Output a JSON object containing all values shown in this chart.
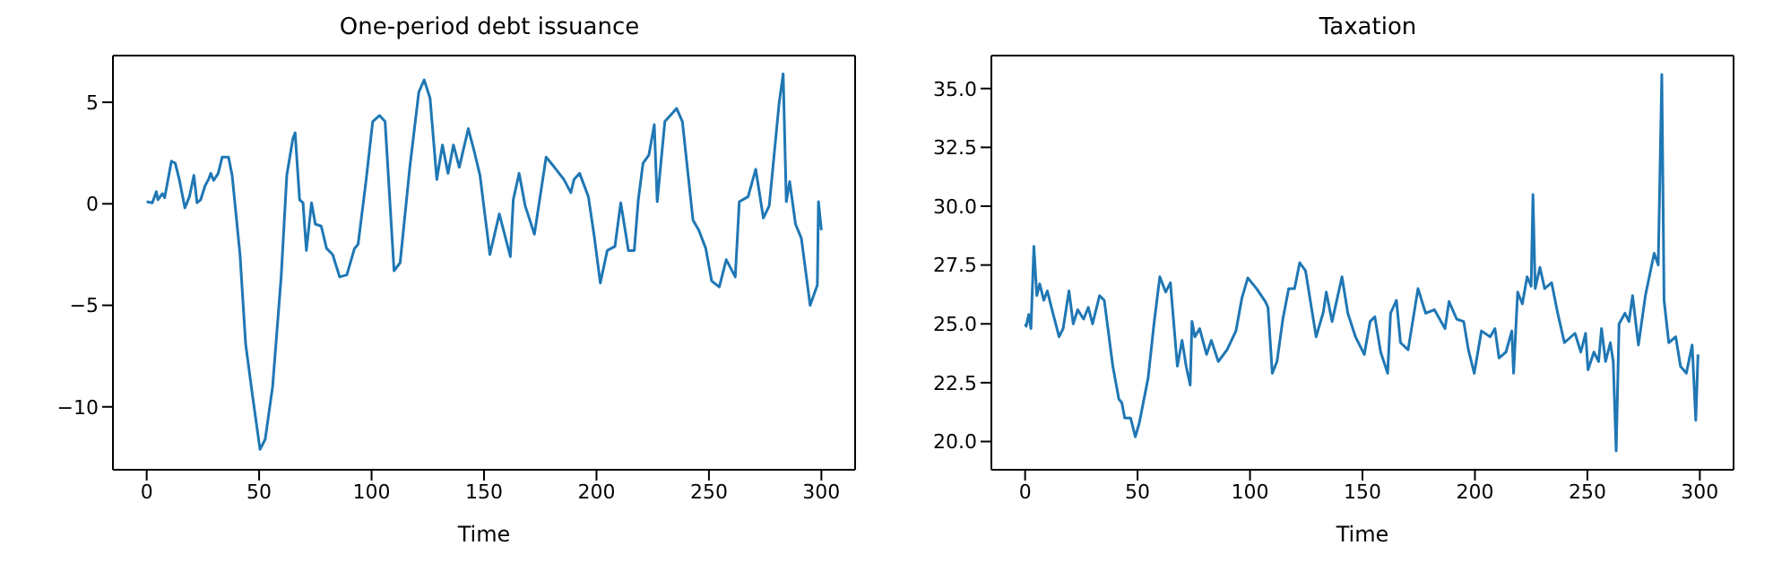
{
  "chart_data": [
    {
      "type": "line",
      "title": "One-period debt issuance",
      "xlabel": "Time",
      "xlim": [
        -15,
        315
      ],
      "xticks": [
        0,
        50,
        100,
        150,
        200,
        250,
        300
      ],
      "ylim": [
        -13.1,
        7.3
      ],
      "yticks": [
        {
          "value": -10,
          "label": "−10"
        },
        {
          "value": -5,
          "label": "−5"
        },
        0,
        5
      ],
      "grid": false,
      "legend": false,
      "series": [
        {
          "color": "#1f77b4",
          "x": [
            0,
            2.5,
            4.3,
            5,
            7,
            8,
            11,
            12.7,
            14.5,
            17,
            19,
            21,
            22.4,
            24,
            26,
            27.5,
            28.5,
            29.8,
            31.8,
            33.6,
            36.4,
            38,
            41.5,
            44,
            47,
            50.4,
            52.7,
            56,
            59.8,
            62.3,
            65,
            66,
            68,
            69.5,
            71,
            73.3,
            75,
            77.6,
            80,
            82.7,
            85.8,
            89,
            92.4,
            94,
            97.5,
            100.5,
            103.5,
            106,
            110,
            112.7,
            117,
            121,
            123.4,
            126,
            129,
            131.5,
            134,
            136.4,
            139,
            143,
            145.6,
            148.2,
            152.6,
            156.8,
            161.7,
            163,
            165.6,
            168.3,
            172.4,
            177.6,
            181.3,
            185.5,
            188.6,
            190,
            192.5,
            196.4,
            199,
            201.7,
            204.8,
            208.2,
            210.8,
            214.2,
            216.8,
            218.6,
            220.7,
            223.3,
            225.7,
            227,
            230.4,
            232.4,
            235.6,
            238.2,
            242.9,
            245.5,
            248.6,
            251.2,
            254.6,
            257.7,
            261.7,
            263.5,
            267.4,
            270.8,
            274.2,
            276.8,
            281.2,
            283,
            284.4,
            285.9,
            288.5,
            291.1,
            295,
            298.2,
            298.7,
            300
          ],
          "values": [
            0.1,
            0.05,
            0.6,
            0.2,
            0.5,
            0.3,
            2.1,
            2.0,
            1.2,
            -0.2,
            0.35,
            1.4,
            0.05,
            0.2,
            0.9,
            1.2,
            1.5,
            1.15,
            1.5,
            2.3,
            2.3,
            1.4,
            -2.5,
            -6.9,
            -9.4,
            -12.1,
            -11.6,
            -9.0,
            -3.6,
            1.4,
            3.2,
            3.5,
            0.2,
            0.05,
            -2.3,
            0.05,
            -1.0,
            -1.1,
            -2.2,
            -2.5,
            -3.6,
            -3.5,
            -2.2,
            -2.0,
            1.1,
            4.05,
            4.35,
            4.05,
            -3.3,
            -2.9,
            1.8,
            5.5,
            6.1,
            5.2,
            1.2,
            2.9,
            1.5,
            2.9,
            1.8,
            3.7,
            2.6,
            1.4,
            -2.5,
            -0.5,
            -2.6,
            0.2,
            1.5,
            -0.1,
            -1.5,
            2.3,
            1.8,
            1.2,
            0.55,
            1.2,
            1.5,
            0.35,
            -1.6,
            -3.9,
            -2.3,
            -2.1,
            0.05,
            -2.3,
            -2.3,
            0.2,
            2.0,
            2.4,
            3.9,
            0.1,
            4.05,
            4.3,
            4.7,
            4.05,
            -0.8,
            -1.3,
            -2.2,
            -3.8,
            -4.1,
            -2.75,
            -3.6,
            0.1,
            0.35,
            1.7,
            -0.7,
            -0.1,
            4.95,
            6.4,
            0.1,
            1.1,
            -1.0,
            -1.7,
            -5.0,
            -4.0,
            0.1,
            -1.3
          ]
        }
      ]
    },
    {
      "type": "line",
      "title": "Taxation",
      "xlabel": "Time",
      "xlim": [
        -15,
        315
      ],
      "xticks": [
        0,
        50,
        100,
        150,
        200,
        250,
        300
      ],
      "ylim": [
        18.8,
        36.4
      ],
      "yticks": [
        {
          "value": 20,
          "label": "20.0"
        },
        {
          "value": 22.5,
          "label": "22.5"
        },
        {
          "value": 25,
          "label": "25.0"
        },
        {
          "value": 27.5,
          "label": "27.5"
        },
        {
          "value": 30,
          "label": "30.0"
        },
        {
          "value": 32.5,
          "label": "32.5"
        },
        {
          "value": 35,
          "label": "35.0"
        }
      ],
      "grid": false,
      "legend": false,
      "series": [
        {
          "color": "#1f77b4",
          "x": [
            0,
            0.5,
            1.6,
            2.6,
            3.9,
            5.2,
            6.5,
            8.3,
            9.9,
            11.7,
            15.1,
            16.9,
            19.5,
            21.4,
            23.4,
            26,
            28.1,
            30,
            31.8,
            33.1,
            35.2,
            39,
            41.7,
            43,
            44.3,
            46.9,
            49,
            50.8,
            54.7,
            57.3,
            59.9,
            62.5,
            64.6,
            67.7,
            69.8,
            71.6,
            73.4,
            74.2,
            75.5,
            77.6,
            80.7,
            82.8,
            85.9,
            89.8,
            93.75,
            96.4,
            99,
            102.9,
            106.8,
            108,
            109.9,
            112,
            114.6,
            117.2,
            119.8,
            122.1,
            124.7,
            127.3,
            129.4,
            132.6,
            133.9,
            136.5,
            140.9,
            143.5,
            146.9,
            150.8,
            153.4,
            155.5,
            158.1,
            161.2,
            162.5,
            165.1,
            166.9,
            170.3,
            174.7,
            178.1,
            182,
            186.7,
            188.5,
            191.9,
            195,
            197.1,
            199.7,
            202.9,
            206.8,
            208.9,
            210.7,
            213.8,
            216.4,
            217.2,
            219,
            221.1,
            223.2,
            225,
            225.8,
            226.8,
            228.9,
            231,
            234.1,
            236.7,
            239.8,
            244.5,
            247.1,
            249.2,
            250.3,
            252.9,
            255,
            256.3,
            258.1,
            260.2,
            261.5,
            262.8,
            264.1,
            266.7,
            268.5,
            270.1,
            272.7,
            275.8,
            279.7,
            281.5,
            283.1,
            284.1,
            286.2,
            289.3,
            291.4,
            294,
            296.6,
            298.2,
            299.2
          ],
          "values": [
            25.0,
            24.9,
            25.4,
            24.8,
            28.3,
            26.2,
            26.7,
            26.0,
            26.4,
            25.7,
            24.45,
            24.8,
            26.4,
            25.0,
            25.6,
            25.2,
            25.7,
            25.0,
            25.7,
            26.2,
            26.0,
            23.2,
            21.8,
            21.65,
            21.0,
            21.0,
            20.2,
            20.8,
            22.7,
            25.0,
            27.0,
            26.35,
            26.75,
            23.2,
            24.3,
            23.2,
            22.4,
            25.1,
            24.45,
            24.8,
            23.7,
            24.3,
            23.4,
            23.9,
            24.7,
            26.1,
            26.95,
            26.5,
            25.95,
            25.7,
            22.9,
            23.4,
            25.2,
            26.5,
            26.5,
            27.6,
            27.25,
            25.7,
            24.45,
            25.5,
            26.35,
            25.1,
            27.0,
            25.45,
            24.45,
            23.7,
            25.1,
            25.3,
            23.8,
            22.9,
            25.45,
            26.0,
            24.2,
            23.9,
            26.5,
            25.45,
            25.6,
            24.8,
            25.95,
            25.2,
            25.1,
            23.9,
            22.9,
            24.7,
            24.45,
            24.8,
            23.55,
            23.8,
            24.7,
            22.9,
            26.35,
            25.85,
            27.0,
            26.6,
            30.5,
            26.5,
            27.4,
            26.5,
            26.75,
            25.5,
            24.2,
            24.6,
            23.8,
            24.6,
            23.05,
            23.8,
            23.4,
            24.8,
            23.4,
            24.2,
            23.4,
            19.6,
            25.0,
            25.45,
            25.1,
            26.2,
            24.1,
            26.2,
            28.0,
            27.5,
            35.6,
            26.0,
            24.2,
            24.45,
            23.2,
            22.9,
            24.1,
            20.9,
            23.7
          ]
        }
      ]
    }
  ]
}
